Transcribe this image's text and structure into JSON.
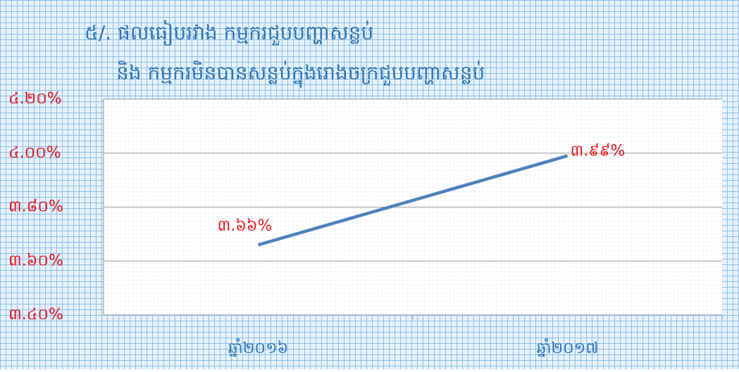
{
  "chart_data": {
    "type": "line",
    "title": "៥/. ផលធៀបរវាង កម្មករជួបបញ្ហាសន្លប់",
    "subtitle": "និង កម្មករមិនបានសន្លប់ក្នុងរោងចក្រជួបបញ្ហាសន្លប់",
    "categories": [
      "ឆ្នាំ២០១៦",
      "ឆ្នាំ២០១៧"
    ],
    "values": [
      3.66,
      3.99
    ],
    "value_labels": [
      "៣.៦៦%",
      "៣.៩៩%"
    ],
    "color": "#4f81bd",
    "ylim": [
      3.4,
      4.2
    ],
    "yticks": [
      {
        "value": 3.4,
        "label": "៣.៤០%"
      },
      {
        "value": 3.6,
        "label": "៣.៦០%"
      },
      {
        "value": 3.8,
        "label": "៣.៨០%"
      },
      {
        "value": 4.0,
        "label": "៤.០០%"
      },
      {
        "value": 4.2,
        "label": "៤.២០%"
      }
    ],
    "grid": true
  }
}
